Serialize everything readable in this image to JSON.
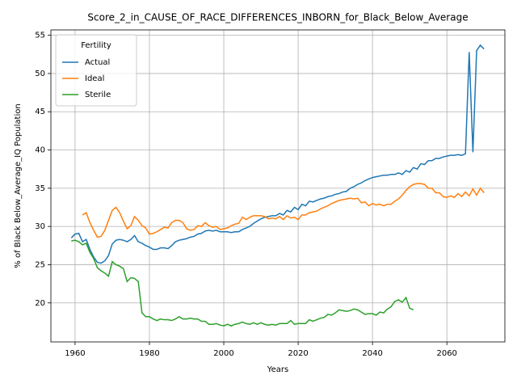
{
  "chart_data": {
    "type": "line",
    "title": "Score_2_in_CAUSE_OF_RACE_DIFFERENCES_INBORN_for_Black_Below_Average",
    "xlabel": "Years",
    "ylabel": "% of Black Below_Average_IQ Population",
    "legend_title": "Fertility",
    "legend": "upper left",
    "grid": true,
    "xlim": [
      1953.5,
      2075.6
    ],
    "ylim": [
      14.9,
      55.7
    ],
    "xticks": [
      1960,
      1980,
      2000,
      2020,
      2040,
      2060
    ],
    "yticks": [
      20,
      25,
      30,
      35,
      40,
      45,
      50,
      55
    ],
    "x": [
      1959,
      1960,
      1961,
      1962,
      1963,
      1964,
      1965,
      1966,
      1967,
      1968,
      1969,
      1970,
      1971,
      1972,
      1973,
      1974,
      1975,
      1976,
      1977,
      1978,
      1979,
      1980,
      1981,
      1982,
      1983,
      1984,
      1985,
      1986,
      1987,
      1988,
      1989,
      1990,
      1991,
      1992,
      1993,
      1994,
      1995,
      1996,
      1997,
      1998,
      1999,
      2000,
      2001,
      2002,
      2003,
      2004,
      2005,
      2006,
      2007,
      2008,
      2009,
      2010,
      2011,
      2012,
      2013,
      2014,
      2015,
      2016,
      2017,
      2018,
      2019,
      2020,
      2021,
      2022,
      2023,
      2024,
      2025,
      2026,
      2027,
      2028,
      2029,
      2030,
      2031,
      2032,
      2033,
      2034,
      2035,
      2036,
      2037,
      2038,
      2039,
      2040,
      2041,
      2042,
      2043,
      2044,
      2045,
      2046,
      2047,
      2048,
      2049,
      2050,
      2051,
      2052,
      2053,
      2054,
      2055,
      2056,
      2057,
      2058,
      2059,
      2060,
      2061,
      2062,
      2063,
      2064,
      2065,
      2066,
      2067,
      2068,
      2069,
      2070
    ],
    "series": [
      {
        "name": "Actual",
        "color": "#1f77b4",
        "values": [
          28.5,
          29.0,
          29.1,
          28.0,
          28.3,
          27.0,
          26.0,
          25.3,
          25.2,
          25.5,
          26.2,
          27.7,
          28.2,
          28.3,
          28.2,
          28.0,
          28.3,
          28.8,
          28.0,
          27.8,
          27.5,
          27.3,
          27.0,
          27.0,
          27.2,
          27.2,
          27.1,
          27.5,
          28.0,
          28.2,
          28.3,
          28.4,
          28.6,
          28.7,
          29.0,
          29.1,
          29.4,
          29.5,
          29.4,
          29.5,
          29.3,
          29.3,
          29.3,
          29.2,
          29.3,
          29.3,
          29.6,
          29.8,
          30.0,
          30.4,
          30.7,
          31.0,
          31.2,
          31.3,
          31.4,
          31.4,
          31.7,
          31.5,
          32.1,
          31.9,
          32.5,
          32.2,
          32.9,
          32.7,
          33.3,
          33.2,
          33.4,
          33.6,
          33.7,
          33.9,
          34.0,
          34.2,
          34.3,
          34.5,
          34.6,
          35.0,
          35.2,
          35.5,
          35.7,
          36.0,
          36.2,
          36.4,
          36.5,
          36.6,
          36.7,
          36.7,
          36.8,
          36.8,
          37.0,
          36.8,
          37.3,
          37.1,
          37.7,
          37.5,
          38.2,
          38.1,
          38.6,
          38.6,
          38.9,
          38.9,
          39.1,
          39.2,
          39.3,
          39.3,
          39.4,
          39.3,
          39.5,
          52.8,
          39.7,
          53.0,
          53.7,
          53.2
        ]
      },
      {
        "name": "Ideal",
        "color": "#ff7f0e",
        "values": [
          null,
          null,
          null,
          31.5,
          31.8,
          30.5,
          29.5,
          28.6,
          28.7,
          29.5,
          30.8,
          32.1,
          32.5,
          31.8,
          30.7,
          29.7,
          30.1,
          31.3,
          30.8,
          30.1,
          29.8,
          29.0,
          29.1,
          29.3,
          29.6,
          29.9,
          29.8,
          30.5,
          30.8,
          30.8,
          30.5,
          29.7,
          29.5,
          29.6,
          30.1,
          30.0,
          30.5,
          30.1,
          29.9,
          30.0,
          29.6,
          29.7,
          29.8,
          30.1,
          30.3,
          30.4,
          31.2,
          30.9,
          31.2,
          31.4,
          31.4,
          31.4,
          31.3,
          31.0,
          31.1,
          31.0,
          31.3,
          30.9,
          31.4,
          31.1,
          31.2,
          30.9,
          31.5,
          31.5,
          31.8,
          31.9,
          32.0,
          32.3,
          32.5,
          32.7,
          33.0,
          33.2,
          33.4,
          33.5,
          33.6,
          33.7,
          33.6,
          33.7,
          33.1,
          33.2,
          32.7,
          33.0,
          32.8,
          32.9,
          32.7,
          32.9,
          32.9,
          33.3,
          33.6,
          34.1,
          34.7,
          35.2,
          35.5,
          35.6,
          35.6,
          35.5,
          35.0,
          35.0,
          34.4,
          34.4,
          33.9,
          33.8,
          34.0,
          33.8,
          34.3,
          33.9,
          34.5,
          34.0,
          34.9,
          34.1,
          35.0,
          34.4
        ]
      },
      {
        "name": "Sterile",
        "color": "#2ca02c",
        "values": [
          28.1,
          28.2,
          28.0,
          27.6,
          27.8,
          26.6,
          25.8,
          24.6,
          24.2,
          23.9,
          23.5,
          25.4,
          25.0,
          24.8,
          24.5,
          22.8,
          23.3,
          23.2,
          22.8,
          18.7,
          18.2,
          18.2,
          17.9,
          17.7,
          17.9,
          17.8,
          17.8,
          17.7,
          17.9,
          18.2,
          17.9,
          17.9,
          18.0,
          17.9,
          17.9,
          17.6,
          17.6,
          17.2,
          17.2,
          17.3,
          17.1,
          17.0,
          17.2,
          17.0,
          17.2,
          17.3,
          17.5,
          17.3,
          17.2,
          17.4,
          17.2,
          17.4,
          17.2,
          17.1,
          17.2,
          17.1,
          17.3,
          17.3,
          17.3,
          17.7,
          17.2,
          17.3,
          17.3,
          17.3,
          17.8,
          17.6,
          17.8,
          18.0,
          18.1,
          18.5,
          18.4,
          18.7,
          19.1,
          19.0,
          18.9,
          19.0,
          19.2,
          19.1,
          18.8,
          18.5,
          18.6,
          18.6,
          18.4,
          18.8,
          18.7,
          19.2,
          19.5,
          20.2,
          20.4,
          20.1,
          20.7,
          19.3,
          19.1,
          null,
          null,
          null,
          null,
          null,
          null,
          null,
          null,
          null,
          null,
          null,
          null,
          null,
          null,
          null,
          null,
          null,
          null,
          null
        ]
      }
    ]
  }
}
